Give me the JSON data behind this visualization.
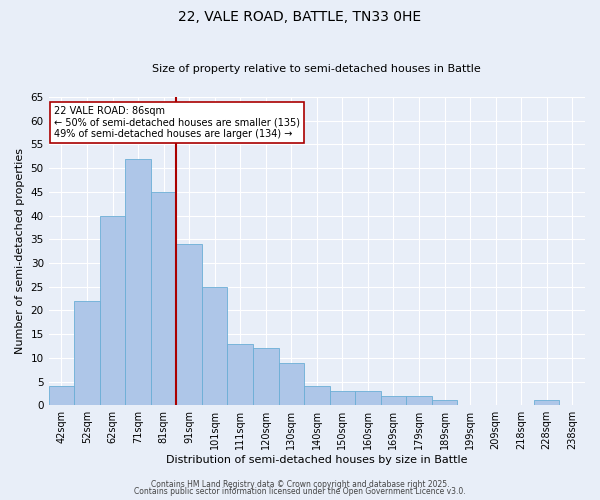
{
  "title": "22, VALE ROAD, BATTLE, TN33 0HE",
  "subtitle": "Size of property relative to semi-detached houses in Battle",
  "xlabel": "Distribution of semi-detached houses by size in Battle",
  "ylabel": "Number of semi-detached properties",
  "bar_labels": [
    "42sqm",
    "52sqm",
    "62sqm",
    "71sqm",
    "81sqm",
    "91sqm",
    "101sqm",
    "111sqm",
    "120sqm",
    "130sqm",
    "140sqm",
    "150sqm",
    "160sqm",
    "169sqm",
    "179sqm",
    "189sqm",
    "199sqm",
    "209sqm",
    "218sqm",
    "228sqm",
    "238sqm"
  ],
  "bar_values": [
    4,
    22,
    40,
    52,
    45,
    34,
    25,
    13,
    12,
    9,
    4,
    3,
    3,
    2,
    2,
    1,
    0,
    0,
    0,
    1,
    0
  ],
  "bar_color": "#aec6e8",
  "bar_edge_color": "#6baed6",
  "bg_color": "#e8eef8",
  "grid_color": "#ffffff",
  "vline_x_idx": 4.5,
  "vline_color": "#aa0000",
  "annotation_title": "22 VALE ROAD: 86sqm",
  "annotation_line1": "← 50% of semi-detached houses are smaller (135)",
  "annotation_line2": "49% of semi-detached houses are larger (134) →",
  "annotation_box_color": "#ffffff",
  "annotation_box_edge": "#aa0000",
  "ylim": [
    0,
    65
  ],
  "yticks": [
    0,
    5,
    10,
    15,
    20,
    25,
    30,
    35,
    40,
    45,
    50,
    55,
    60,
    65
  ],
  "footer1": "Contains HM Land Registry data © Crown copyright and database right 2025.",
  "footer2": "Contains public sector information licensed under the Open Government Licence v3.0.",
  "title_fontsize": 10,
  "subtitle_fontsize": 8,
  "xlabel_fontsize": 8,
  "ylabel_fontsize": 8,
  "xtick_fontsize": 7,
  "ytick_fontsize": 7.5,
  "annotation_fontsize": 7,
  "footer_fontsize": 5.5
}
